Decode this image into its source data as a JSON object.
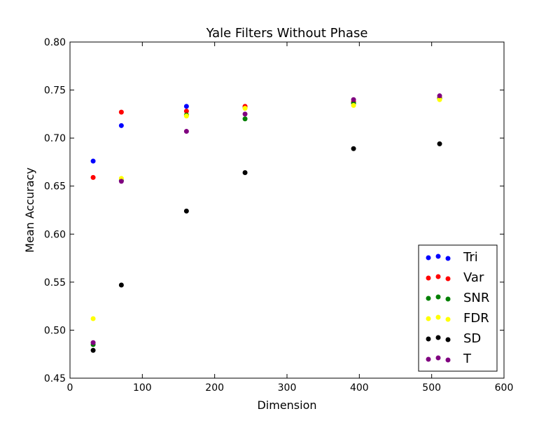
{
  "chart_data": {
    "type": "scatter",
    "title": "Yale Filters Without Phase",
    "xlabel": "Dimension",
    "ylabel": "Mean Accuracy",
    "xlim": [
      0,
      600
    ],
    "ylim": [
      0.45,
      0.8
    ],
    "xticks": [
      "0",
      "100",
      "200",
      "300",
      "400",
      "500",
      "600"
    ],
    "yticks": [
      "0.45",
      "0.50",
      "0.55",
      "0.60",
      "0.65",
      "0.70",
      "0.75",
      "0.80"
    ],
    "grid": false,
    "legend_position": "bottom-right",
    "x": [
      32,
      71,
      161,
      242,
      392,
      511
    ],
    "series": [
      {
        "name": "Tri",
        "color": "#0000ff",
        "values": [
          0.676,
          0.713,
          0.733,
          0.732,
          0.737,
          0.741
        ]
      },
      {
        "name": "Var",
        "color": "#ff0000",
        "values": [
          0.659,
          0.727,
          0.728,
          0.733,
          0.738,
          0.742
        ]
      },
      {
        "name": "SNR",
        "color": "#008000",
        "values": [
          0.485,
          0.656,
          0.724,
          0.72,
          0.736,
          0.741
        ]
      },
      {
        "name": "FDR",
        "color": "#ffff00",
        "values": [
          0.512,
          0.658,
          0.723,
          0.731,
          0.734,
          0.74
        ]
      },
      {
        "name": "SD",
        "color": "#000000",
        "values": [
          0.479,
          0.547,
          0.624,
          0.664,
          0.689,
          0.694
        ]
      },
      {
        "name": "T",
        "color": "#800080",
        "values": [
          0.487,
          0.655,
          0.707,
          0.725,
          0.74,
          0.744
        ]
      }
    ]
  }
}
